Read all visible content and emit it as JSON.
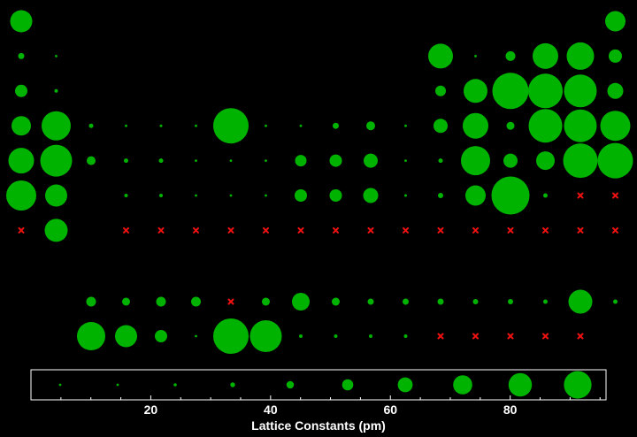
{
  "chart_data": {
    "type": "scatter",
    "subtype": "periodic-table-bubble",
    "xlabel": "Lattice Constants (pm)",
    "title": "",
    "colors": {
      "present": "#00b300",
      "missing": "#ee1111",
      "background": "#000000",
      "frame": "#ffffff",
      "text": "#ffffff"
    },
    "main_table": [
      [
        2.5,
        null,
        null,
        null,
        null,
        null,
        null,
        null,
        null,
        null,
        null,
        null,
        null,
        null,
        null,
        null,
        null,
        2.3
      ],
      [
        0.7,
        0.1,
        null,
        null,
        null,
        null,
        null,
        null,
        null,
        null,
        null,
        null,
        2.8,
        0.1,
        1.1,
        2.9,
        3.1,
        1.5
      ],
      [
        1.4,
        0.4,
        null,
        null,
        null,
        null,
        null,
        null,
        null,
        null,
        null,
        null,
        1.2,
        2.7,
        4.1,
        3.9,
        3.7,
        1.8
      ],
      [
        2.2,
        3.3,
        0.5,
        0.1,
        0.3,
        0.1,
        4.0,
        0.1,
        0.1,
        0.7,
        1.0,
        0.1,
        1.6,
        2.9,
        0.9,
        3.8,
        3.7,
        3.4
      ],
      [
        2.9,
        3.6,
        1.0,
        0.5,
        0.5,
        0.2,
        0.1,
        0.1,
        1.3,
        1.4,
        1.6,
        0.2,
        0.5,
        3.3,
        1.6,
        2.1,
        3.9,
        4.0
      ],
      [
        3.4,
        2.5,
        null,
        0.4,
        0.4,
        0.2,
        0.1,
        0.1,
        1.4,
        1.4,
        1.7,
        0.3,
        0.6,
        2.3,
        4.3,
        0.5,
        "x",
        "x"
      ],
      [
        "x",
        2.6,
        null,
        "x",
        "x",
        "x",
        "x",
        "x",
        "x",
        "x",
        "x",
        "x",
        "x",
        "x",
        "x",
        "x",
        "x",
        "x"
      ]
    ],
    "series_rows": [
      [
        1.1,
        0.9,
        1.1,
        1.1,
        "x",
        0.9,
        2.0,
        0.9,
        0.7,
        0.7,
        0.7,
        0.6,
        0.6,
        0.5,
        2.7,
        0.5
      ],
      [
        3.2,
        2.5,
        1.4,
        0.1,
        4.0,
        3.6,
        0.4,
        0.4,
        0.4,
        0.4,
        "x",
        "x",
        "x",
        "x",
        "x"
      ]
    ],
    "legend": {
      "type": "size-scale",
      "ticks": [
        20,
        40,
        60,
        80
      ],
      "xlim": [
        0,
        96
      ],
      "sample_values": [
        0.1,
        0.3,
        0.6,
        0.9,
        1.4,
        2.1,
        2.8,
        3.6,
        4.4,
        5.2
      ]
    }
  }
}
